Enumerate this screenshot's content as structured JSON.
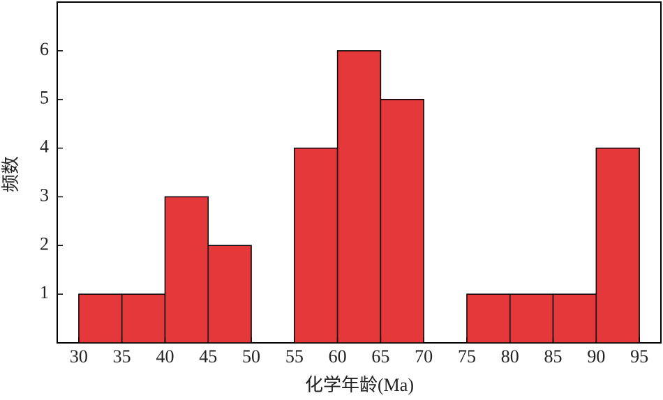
{
  "chart_data": {
    "type": "histogram",
    "xlabel": "化学年龄(Ma)",
    "ylabel": "频数",
    "bins": [
      30,
      35,
      40,
      45,
      50,
      55,
      60,
      65,
      70,
      75,
      80,
      85,
      90,
      95
    ],
    "values": [
      1,
      1,
      3,
      2,
      0,
      4,
      6,
      5,
      0,
      1,
      1,
      1,
      4
    ],
    "color": "#e5383b",
    "xlim": [
      27.5,
      97.5
    ],
    "ylim": [
      0,
      7
    ],
    "xticks": [
      30,
      35,
      40,
      45,
      50,
      55,
      60,
      65,
      70,
      75,
      80,
      85,
      90,
      95
    ],
    "yticks": [
      1,
      2,
      3,
      4,
      5,
      6
    ]
  }
}
